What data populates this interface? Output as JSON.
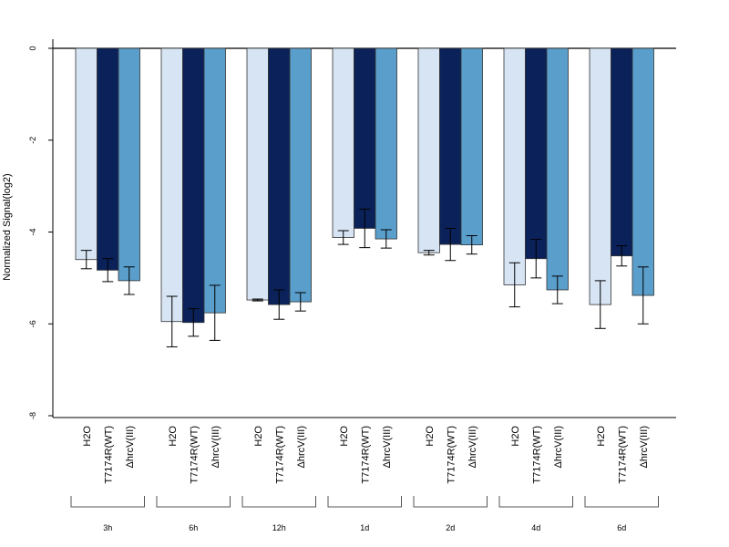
{
  "chart_data": {
    "type": "bar",
    "ylabel": "Normalized Signal(log2)",
    "ylim": [
      -8,
      0.2
    ],
    "yticks": [
      0,
      -2,
      -4,
      -6,
      -8
    ],
    "ytick_labels": [
      "0",
      "-2",
      "-4",
      "-6",
      "-8"
    ],
    "series": [
      {
        "name": "H2O",
        "color": "#d6e4f4",
        "values": [
          -4.6,
          -5.95,
          -5.48,
          -4.12,
          -4.45,
          -5.15,
          -5.58
        ],
        "err": [
          0.2,
          0.55,
          0.02,
          0.15,
          0.05,
          0.48,
          0.52
        ]
      },
      {
        "name": "T7174R(WT)",
        "color": "#0a2259",
        "values": [
          -4.83,
          -5.97,
          -5.58,
          -3.92,
          -4.27,
          -4.58,
          -4.52
        ],
        "err": [
          0.25,
          0.3,
          0.32,
          0.42,
          0.35,
          0.42,
          0.22
        ]
      },
      {
        "name": "ΔhrcV(III)",
        "color": "#5a9ecb",
        "values": [
          -5.06,
          -5.76,
          -5.52,
          -4.15,
          -4.28,
          -5.26,
          -5.38
        ],
        "err": [
          0.3,
          0.6,
          0.2,
          0.2,
          0.2,
          0.3,
          0.62
        ]
      }
    ],
    "groups": [
      "3h",
      "6h",
      "12h",
      "1d",
      "2d",
      "4d",
      "6d"
    ],
    "category_labels": [
      "H2O",
      "T7174R(WT)",
      "ΔhrcV(III)"
    ],
    "grid": false,
    "legend": "none"
  }
}
